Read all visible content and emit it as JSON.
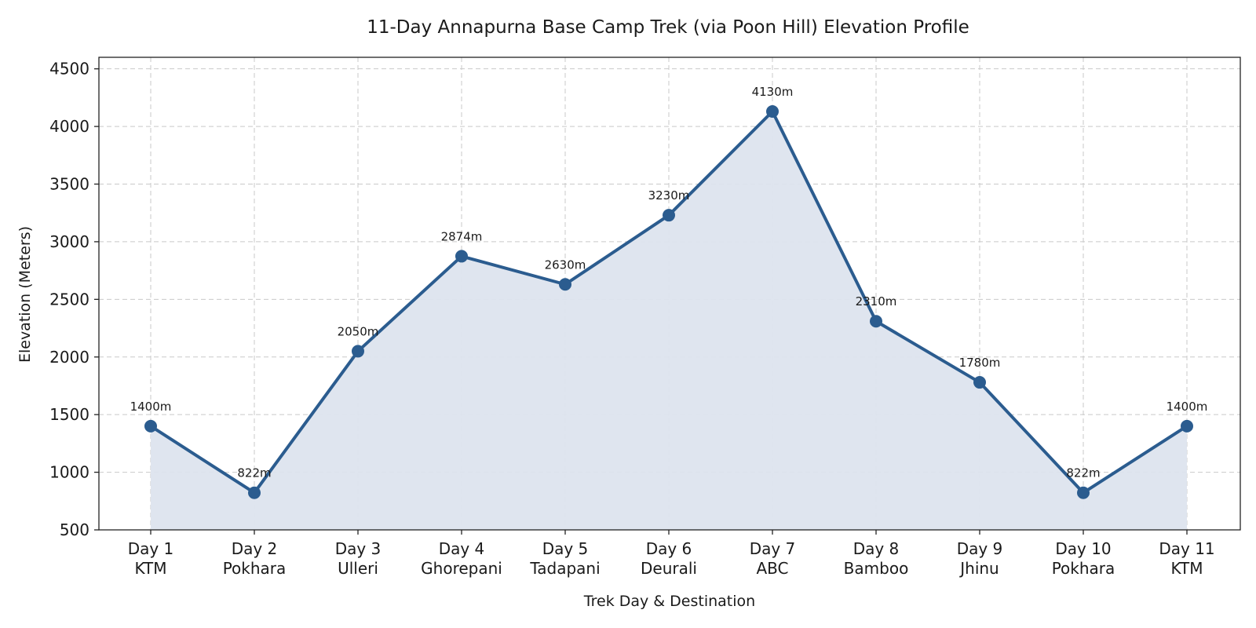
{
  "chart_data": {
    "type": "line",
    "title": "11-Day Annapurna Base Camp Trek (via Poon Hill) Elevation Profile",
    "xlabel": "Trek Day & Destination",
    "ylabel": "Elevation (Meters)",
    "categories": [
      [
        "Day 1",
        "KTM"
      ],
      [
        "Day 2",
        "Pokhara"
      ],
      [
        "Day 3",
        "Ulleri"
      ],
      [
        "Day 4",
        "Ghorepani"
      ],
      [
        "Day 5",
        "Tadapani"
      ],
      [
        "Day 6",
        "Deurali"
      ],
      [
        "Day 7",
        "ABC"
      ],
      [
        "Day 8",
        "Bamboo"
      ],
      [
        "Day 9",
        "Jhinu"
      ],
      [
        "Day 10",
        "Pokhara"
      ],
      [
        "Day 11",
        "KTM"
      ]
    ],
    "values": [
      1400,
      822,
      2050,
      2874,
      2630,
      3230,
      4130,
      2310,
      1780,
      822,
      1400
    ],
    "data_labels": [
      "1400m",
      "822m",
      "2050m",
      "2874m",
      "2630m",
      "3230m",
      "4130m",
      "2310m",
      "1780m",
      "822m",
      "1400m"
    ],
    "ylim": [
      500,
      4600
    ],
    "yticks": [
      500,
      1000,
      1500,
      2000,
      2500,
      3000,
      3500,
      4000,
      4500
    ],
    "grid": true,
    "fill_under_line": true,
    "colors": {
      "line": "#2b5c8f",
      "marker": "#2b5c8f",
      "fill": "#dde4ee"
    }
  }
}
